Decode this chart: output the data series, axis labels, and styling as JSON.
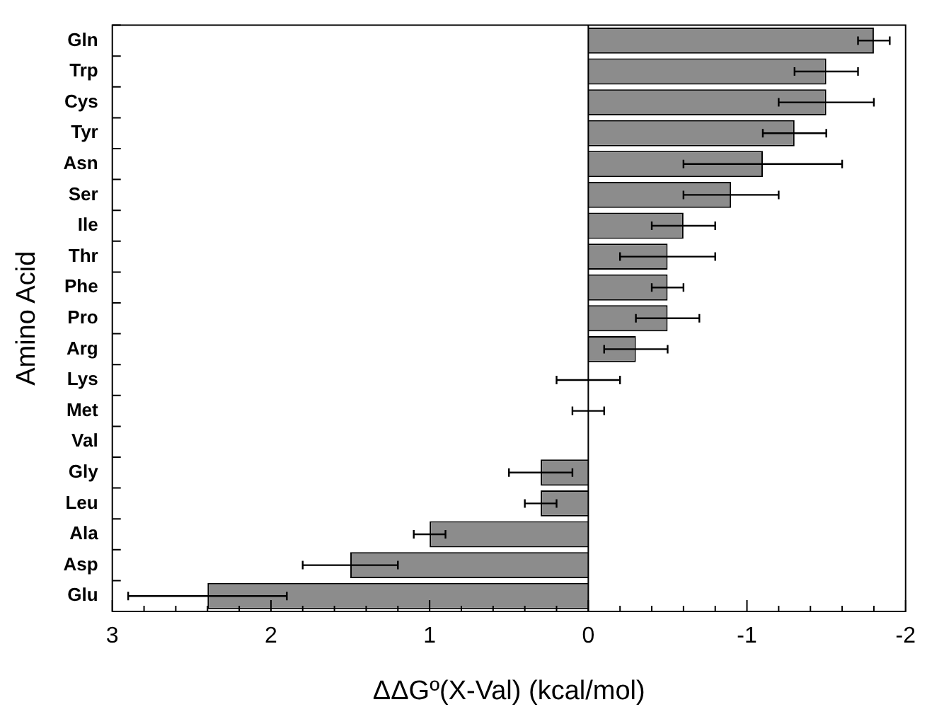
{
  "chart_data": {
    "type": "bar",
    "orientation": "horizontal",
    "xlabel": "ΔΔGº(X-Val) (kcal/mol)",
    "ylabel": "Amino Acid",
    "categories": [
      "Gln",
      "Trp",
      "Cys",
      "Tyr",
      "Asn",
      "Ser",
      "Ile",
      "Thr",
      "Phe",
      "Pro",
      "Arg",
      "Lys",
      "Met",
      "Val",
      "Gly",
      "Leu",
      "Ala",
      "Asp",
      "Glu"
    ],
    "values": [
      -1.8,
      -1.5,
      -1.5,
      -1.3,
      -1.1,
      -0.9,
      -0.6,
      -0.5,
      -0.5,
      -0.5,
      -0.3,
      0,
      0,
      0,
      0.3,
      0.3,
      1.0,
      1.5,
      2.4
    ],
    "errors": [
      0.1,
      0.2,
      0.3,
      0.2,
      0.5,
      0.3,
      0.2,
      0.3,
      0.1,
      0.2,
      0.2,
      0.2,
      0.1,
      null,
      0.2,
      0.1,
      0.1,
      0.3,
      0.5
    ],
    "color": "#8c8c8c",
    "xlim": [
      3,
      -2
    ],
    "xticks": [
      3,
      {
        "value": 2.8,
        "label": null
      },
      {
        "value": 2.6,
        "label": null
      },
      {
        "value": 2.4,
        "label": null
      },
      {
        "value": 2.2,
        "label": null
      },
      2,
      {
        "value": 1.8,
        "label": null
      },
      {
        "value": 1.6,
        "label": null
      },
      {
        "value": 1.4,
        "label": null
      },
      {
        "value": 1.2,
        "label": null
      },
      1,
      {
        "value": 0.8,
        "label": null
      },
      {
        "value": 0.6,
        "label": null
      },
      {
        "value": 0.4,
        "label": null
      },
      {
        "value": 0.2,
        "label": null
      },
      0,
      {
        "value": -0.2,
        "label": null
      },
      {
        "value": -0.4,
        "label": null
      },
      {
        "value": -0.6,
        "label": null
      },
      {
        "value": -0.8,
        "label": null
      },
      -1,
      {
        "value": -1.2,
        "label": null
      },
      {
        "value": -1.4,
        "label": null
      },
      {
        "value": -1.6,
        "label": null
      },
      {
        "value": -1.8,
        "label": null
      },
      -2
    ],
    "ref_lines": [
      {
        "axis": "x",
        "value": 0,
        "color": "#000000"
      }
    ],
    "legend": false
  }
}
